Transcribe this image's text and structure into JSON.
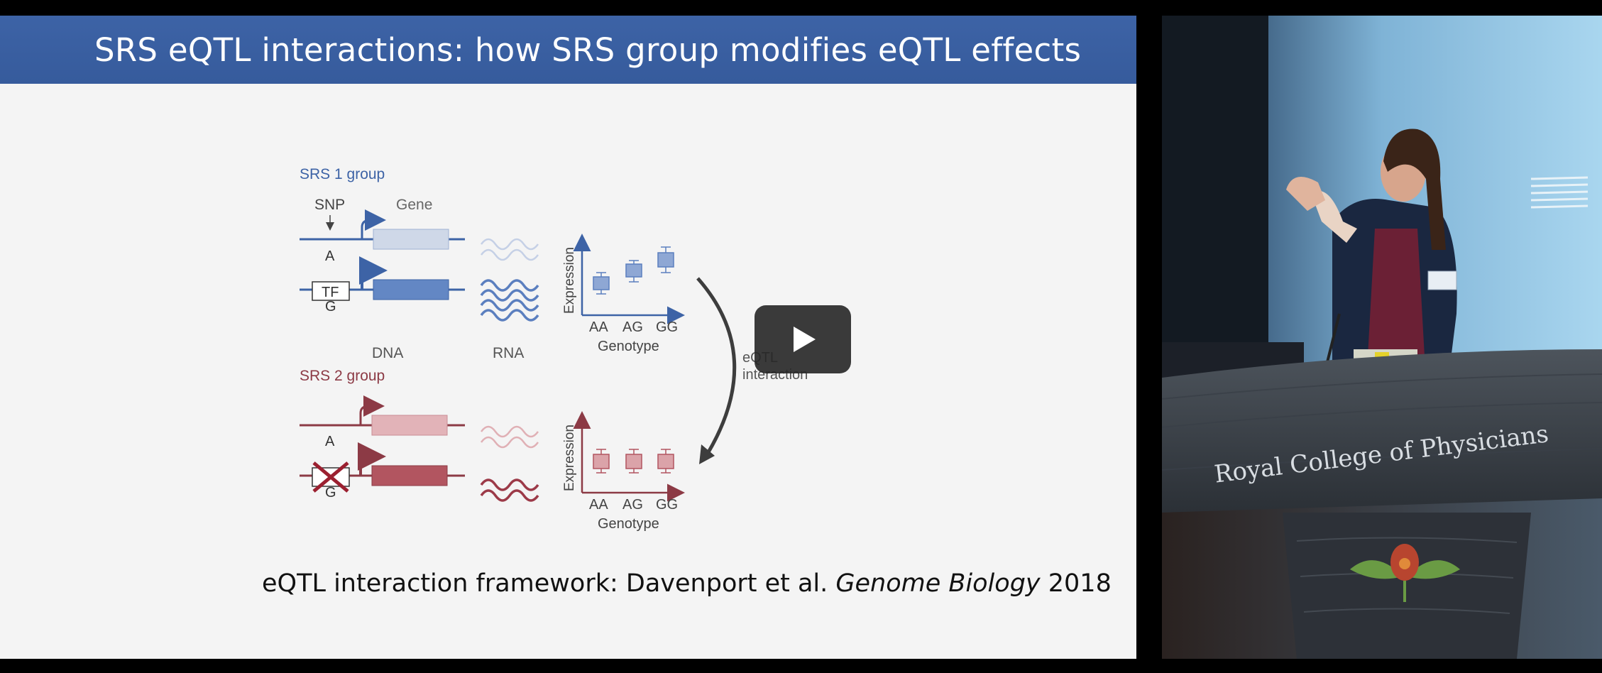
{
  "slide": {
    "title": "SRS eQTL interactions: how SRS group modifies eQTL effects",
    "group1_label": "SRS 1 group",
    "group2_label": "SRS 2 group",
    "snp_label": "SNP",
    "gene_label": "Gene",
    "allele_a": "A",
    "allele_g": "G",
    "tf_label": "TF",
    "dna_label": "DNA",
    "rna_label": "RNA",
    "axis_y": "Expression",
    "axis_x": "Genotype",
    "genotypes": [
      "AA",
      "AG",
      "GG"
    ],
    "interaction_label_line1": "eQTL",
    "interaction_label_line2": "interaction",
    "citation_prefix": "eQTL interaction framework: Davenport et al. ",
    "citation_journal": "Genome Biology",
    "citation_year": " 2018"
  },
  "colors": {
    "header_blue": "#3a60a3",
    "srs1_blue": "#3d63a6",
    "srs1_light": "#cfd8e8",
    "srs1_dark": "#6387c4",
    "srs2_red": "#8c3a45",
    "srs2_light": "#e6b9bd",
    "srs2_dark": "#b25560"
  },
  "camera": {
    "podium_text": "Royal College of Physicians"
  },
  "player": {
    "play_icon": "play-icon"
  }
}
